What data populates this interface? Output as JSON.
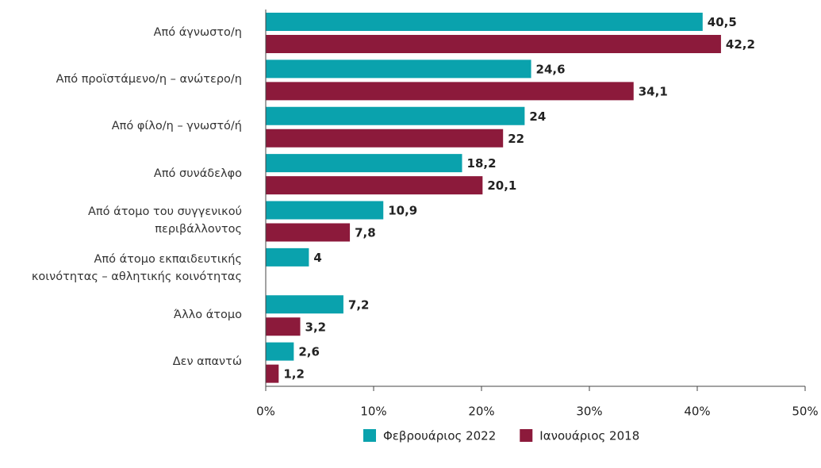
{
  "chart_data": {
    "type": "bar",
    "orientation": "horizontal",
    "categories": [
      "Από άγνωστο/η",
      "Από προϊστάμενο/η – ανώτερο/η",
      "Από φίλο/η – γνωστό/ή",
      "Από συνάδελφο",
      "Από άτομο του συγγενικού\nπεριβάλλοντος",
      "Από άτομο εκπαιδευτικής\nκοινότητας – αθλητικής κοινότητας",
      "Άλλο άτομο",
      "Δεν απαντώ"
    ],
    "series": [
      {
        "name": "Φεβρουάριος 2022",
        "color": "#0aa2ad",
        "values": [
          40.5,
          24.6,
          24,
          18.2,
          10.9,
          4,
          7.2,
          2.6
        ],
        "value_labels": [
          "40,5",
          "24,6",
          "24",
          "18,2",
          "10,9",
          "4",
          "7,2",
          "2,6"
        ]
      },
      {
        "name": "Ιανουάριος 2018",
        "color": "#8c1a3b",
        "values": [
          42.2,
          34.1,
          22,
          20.1,
          7.8,
          null,
          3.2,
          1.2
        ],
        "value_labels": [
          "42,2",
          "34,1",
          "22",
          "20,1",
          "7,8",
          null,
          "3,2",
          "1,2"
        ]
      }
    ],
    "xlim": [
      0,
      50
    ],
    "xticks": [
      {
        "value": 0,
        "label": "0%"
      },
      {
        "value": 10,
        "label": "10%"
      },
      {
        "value": 20,
        "label": "20%"
      },
      {
        "value": 30,
        "label": "30%"
      },
      {
        "value": 40,
        "label": "40%"
      },
      {
        "value": 50,
        "label": "50%"
      }
    ],
    "grid": false
  }
}
